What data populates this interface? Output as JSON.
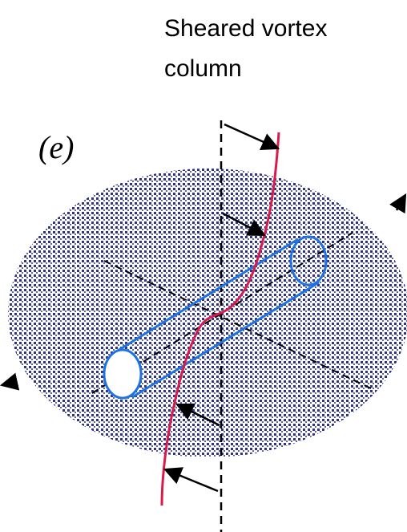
{
  "title": {
    "lines": [
      "Sheared vortex",
      "column"
    ]
  },
  "label": "(e)"
}
